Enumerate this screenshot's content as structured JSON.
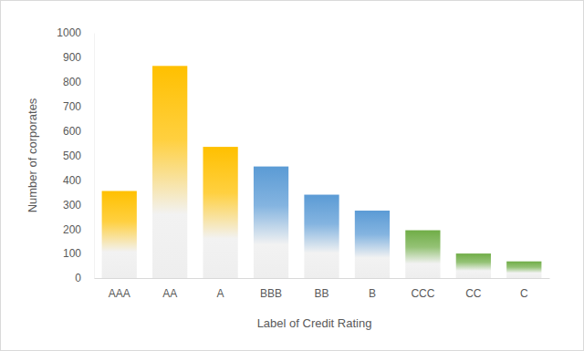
{
  "chart_data": {
    "type": "bar",
    "x_label": "Label of Credit Rating",
    "y_label": "Number of corporates",
    "categories": [
      "AAA",
      "AA",
      "A",
      "BBB",
      "BB",
      "B",
      "CCC",
      "CC",
      "C"
    ],
    "values": [
      355,
      865,
      535,
      455,
      340,
      275,
      195,
      100,
      68
    ],
    "colors": [
      "#ffc000",
      "#ffc000",
      "#ffc000",
      "#5b9bd5",
      "#5b9bd5",
      "#5b9bd5",
      "#70ad47",
      "#70ad47",
      "#70ad47"
    ],
    "ylim": [
      0,
      1000
    ],
    "yticks": [
      0,
      100,
      200,
      300,
      400,
      500,
      600,
      700,
      800,
      900,
      1000
    ],
    "grid": false
  }
}
